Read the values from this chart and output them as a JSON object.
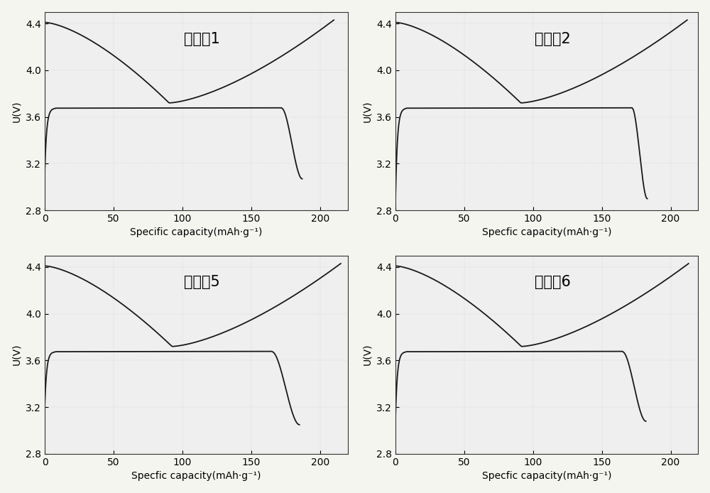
{
  "panels": [
    {
      "title": "实施例1",
      "xlabel": "Specific capacity(mAh·g⁻¹)"
    },
    {
      "title": "实施例2",
      "xlabel": "Specfic capacity(mAh·g⁻¹)"
    },
    {
      "title": "实施例5",
      "xlabel": "Specfic capacity(mAh·g⁻¹)"
    },
    {
      "title": "实施例6",
      "xlabel": "Specfic capacity(mAh·g⁻¹)"
    }
  ],
  "ylabel": "U(V)",
  "ylim": [
    2.8,
    4.5
  ],
  "xlim": [
    0,
    220
  ],
  "yticks": [
    2.8,
    3.2,
    3.6,
    4.0,
    4.4
  ],
  "xticks": [
    0,
    50,
    100,
    150,
    200
  ],
  "line_color": "#1a1a1a",
  "bg_color": "#efefef",
  "title_fontsize": 15,
  "axis_fontsize": 10,
  "tick_fontsize": 10,
  "panel_configs": [
    {
      "drop_start": 172,
      "drop_end": 187,
      "drop_to": 3.07,
      "charge_end": 210,
      "init_y": 3.14
    },
    {
      "drop_start": 172,
      "drop_end": 183,
      "drop_to": 2.9,
      "charge_end": 212,
      "init_y": 2.85
    },
    {
      "drop_start": 165,
      "drop_end": 185,
      "drop_to": 3.05,
      "charge_end": 215,
      "init_y": 3.22
    },
    {
      "drop_start": 165,
      "drop_end": 182,
      "drop_to": 3.08,
      "charge_end": 213,
      "init_y": 3.08
    }
  ]
}
